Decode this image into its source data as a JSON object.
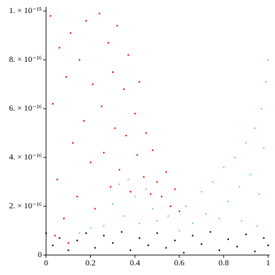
{
  "chart_data": {
    "type": "scatter",
    "xlim": [
      0,
      1
    ],
    "ylim": [
      0,
      1e-15
    ],
    "xticks": [
      0,
      0.2,
      0.4,
      0.6,
      0.8,
      1
    ],
    "yticks": [
      0,
      {
        "value": 2e-16,
        "label": "2. × 10⁻¹⁶"
      },
      {
        "value": 4e-16,
        "label": "4. × 10⁻¹⁶"
      },
      {
        "value": 6e-16,
        "label": "6. × 10⁻¹⁶"
      },
      {
        "value": 8e-16,
        "label": "8. × 10⁻¹⁶"
      },
      {
        "value": 1e-15,
        "label": "1. × 10⁻¹⁵"
      }
    ],
    "series": [
      {
        "color": "#ee1111",
        "x": [
          0.02,
          0.03,
          0.05,
          0.06,
          0.08,
          0.09,
          0.11,
          0.12,
          0.14,
          0.15,
          0.17,
          0.18,
          0.2,
          0.21,
          0.22,
          0.24,
          0.25,
          0.26,
          0.28,
          0.29,
          0.3,
          0.31,
          0.32,
          0.33,
          0.35,
          0.36,
          0.37,
          0.38,
          0.4,
          0.41,
          0.42,
          0.44,
          0.45,
          0.47,
          0.48,
          0.5,
          0.52,
          0.54,
          0.56,
          0.58,
          0.6,
          0.04,
          0.1
        ],
        "values": [
          9.8e-16,
          6.2e-16,
          3.1e-16,
          8.5e-16,
          1.5e-16,
          7.3e-16,
          9.1e-16,
          4.6e-16,
          2.4e-16,
          8e-16,
          5.5e-16,
          9.6e-16,
          3.8e-16,
          7e-16,
          1.9e-16,
          9.9e-16,
          6.1e-16,
          4.2e-16,
          8.7e-16,
          2.8e-16,
          7.5e-16,
          5.2e-16,
          9.4e-16,
          3.5e-16,
          6.8e-16,
          4.9e-16,
          8.2e-16,
          2.6e-16,
          5.8e-16,
          4.1e-16,
          7.1e-16,
          3.2e-16,
          5e-16,
          2.5e-16,
          4.3e-16,
          3e-16,
          2.4e-16,
          3.4e-16,
          2e-16,
          2.7e-16,
          1.8e-16,
          8e-17,
          5e-17
        ]
      },
      {
        "color": "#7fdca0",
        "x": [
          0.26,
          0.3,
          0.33,
          0.35,
          0.37,
          0.4,
          0.42,
          0.45,
          0.48,
          0.5,
          0.55,
          0.6,
          0.63,
          0.66,
          0.7,
          0.72,
          0.75,
          0.78,
          0.8,
          0.82,
          0.85,
          0.87,
          0.9,
          0.92,
          0.94,
          0.96,
          0.97,
          0.98,
          0.99,
          1.0,
          0.95,
          0.15,
          0.2,
          0.88
        ],
        "values": [
          1.2e-16,
          2.1e-16,
          2.9e-16,
          1.6e-16,
          3.1e-16,
          2.4e-16,
          1.3e-16,
          2.7e-16,
          1.9e-16,
          1.4e-16,
          1.6e-16,
          1e-16,
          2e-16,
          1.3e-16,
          2.6e-16,
          1.7e-16,
          3e-16,
          1.5e-16,
          3.6e-16,
          2.2e-16,
          4e-16,
          2.8e-16,
          4.6e-16,
          3.3e-16,
          5.2e-16,
          2.5e-16,
          6e-16,
          4.4e-16,
          7.1e-16,
          8e-16,
          1.2e-16,
          9e-17,
          1.1e-16,
          1.4e-16
        ]
      },
      {
        "color": "#111111",
        "x": [
          0.0,
          0.03,
          0.06,
          0.1,
          0.14,
          0.18,
          0.22,
          0.26,
          0.3,
          0.34,
          0.38,
          0.42,
          0.46,
          0.5,
          0.54,
          0.58,
          0.62,
          0.66,
          0.7,
          0.74,
          0.78,
          0.82,
          0.86,
          0.9,
          0.94,
          0.98,
          1.0
        ],
        "values": [
          9e-17,
          4e-17,
          7e-17,
          2e-17,
          6e-17,
          9e-17,
          3e-17,
          8e-17,
          5e-17,
          9.5e-17,
          2e-17,
          7e-17,
          4e-17,
          9e-17,
          3e-17,
          6e-17,
          1e-17,
          8e-17,
          4.5e-17,
          9.5e-17,
          2e-17,
          6.5e-17,
          3.5e-17,
          8.5e-17,
          1.5e-17,
          7e-17,
          4e-17
        ]
      }
    ]
  }
}
